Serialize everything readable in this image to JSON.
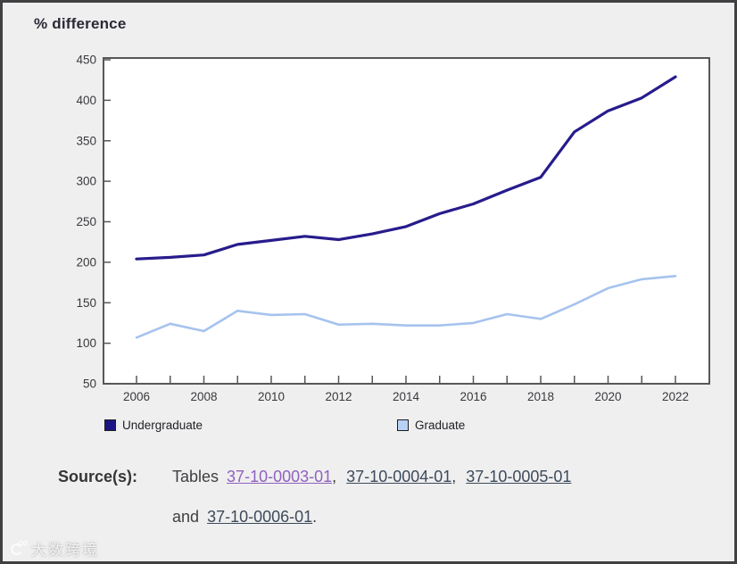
{
  "chart": {
    "title": "% difference"
  },
  "chart_data": {
    "type": "line",
    "x": [
      2006,
      2007,
      2008,
      2009,
      2010,
      2011,
      2012,
      2013,
      2014,
      2015,
      2016,
      2017,
      2018,
      2019,
      2020,
      2021,
      2022
    ],
    "xtick_labels": [
      "2006",
      "2008",
      "2010",
      "2012",
      "2014",
      "2016",
      "2018",
      "2020",
      "2022"
    ],
    "series": [
      {
        "name": "Undergraduate",
        "line_color": "#271c8c",
        "swatch_color": "#1d1483",
        "values": [
          204,
          206,
          209,
          222,
          227,
          232,
          228,
          235,
          244,
          260,
          272,
          289,
          305,
          361,
          387,
          403,
          429
        ]
      },
      {
        "name": "Graduate",
        "line_color": "#a6c3ee",
        "swatch_color": "#b7d2f5",
        "values": [
          107,
          124,
          115,
          140,
          135,
          136,
          123,
          124,
          122,
          122,
          125,
          136,
          130,
          148,
          168,
          179,
          183
        ]
      }
    ],
    "title": "% difference",
    "xlabel": "",
    "ylabel": "% difference",
    "ylim": [
      50,
      450
    ],
    "ytick_step": 50,
    "grid": false,
    "legend_position": "bottom"
  },
  "source": {
    "label": "Source(s):",
    "prefix": "Tables",
    "links": [
      "37-10-0003-01",
      "37-10-0004-01",
      "37-10-0005-01",
      "37-10-0006-01"
    ],
    "separator": ",",
    "conjunction": "and",
    "suffix": "."
  },
  "watermark": {
    "text": "大数跨境"
  },
  "colors": {
    "background": "#efeff0",
    "plot_background": "#ffffff",
    "axis": "#57575a",
    "axis_text": "#39393c",
    "visited_link": "#8f62bd",
    "link": "#3d4a5a"
  }
}
